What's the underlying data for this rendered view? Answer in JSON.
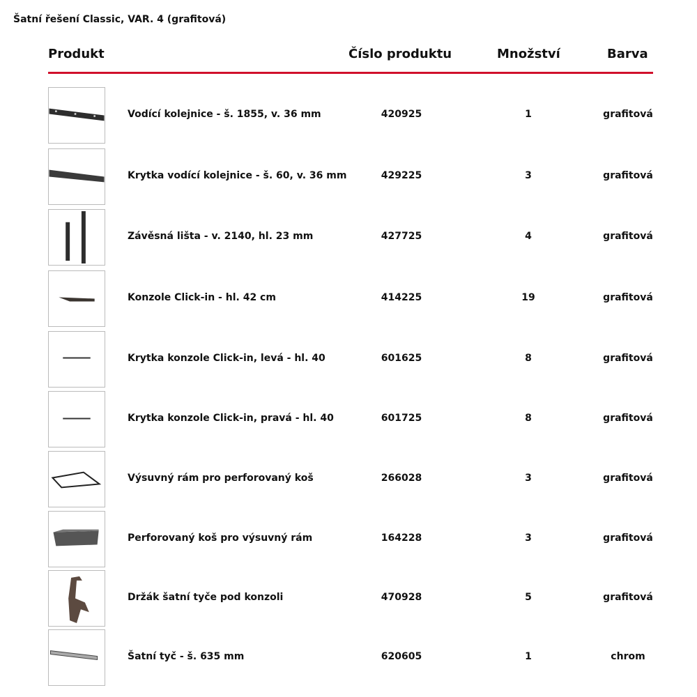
{
  "title": "Šatní řešení Classic, VAR. 4 (grafitová)",
  "headers": {
    "product": "Produkt",
    "number": "Číslo produktu",
    "quantity": "Množství",
    "color": "Barva"
  },
  "accent_color": "#d0102b",
  "rows": [
    {
      "icon": "rail-image",
      "name": "Vodící kolejnice - š. 1855, v. 36 mm",
      "number": "420925",
      "quantity": "1",
      "color": "grafitová"
    },
    {
      "icon": "rail-cover-image",
      "name": "Krytka vodící kolejnice - š. 60, v. 36 mm",
      "number": "429225",
      "quantity": "3",
      "color": "grafitová"
    },
    {
      "icon": "hanging-strip-image",
      "name": "Závěsná lišta - v. 2140, hl. 23 mm",
      "number": "427725",
      "quantity": "4",
      "color": "grafitová"
    },
    {
      "icon": "bracket-image",
      "name": "Konzole Click-in - hl. 42 cm",
      "number": "414225",
      "quantity": "19",
      "color": "grafitová"
    },
    {
      "icon": "bracket-cover-left-image",
      "name": "Krytka konzole Click-in, levá - hl. 40",
      "number": "601625",
      "quantity": "8",
      "color": "grafitová"
    },
    {
      "icon": "bracket-cover-right-image",
      "name": "Krytka konzole Click-in, pravá - hl. 40",
      "number": "601725",
      "quantity": "8",
      "color": "grafitová"
    },
    {
      "icon": "pullout-frame-image",
      "name": "Výsuvný rám pro perforovaný koš",
      "number": "266028",
      "quantity": "3",
      "color": "grafitová"
    },
    {
      "icon": "basket-image",
      "name": "Perforovaný koš pro výsuvný rám",
      "number": "164228",
      "quantity": "3",
      "color": "grafitová"
    },
    {
      "icon": "rod-holder-image",
      "name": "Držák šatní tyče pod konzoli",
      "number": "470928",
      "quantity": "5",
      "color": "grafitová"
    },
    {
      "icon": "rod-image",
      "name": "Šatní tyč - š. 635 mm",
      "number": "620605",
      "quantity": "1",
      "color": "chrom"
    }
  ]
}
